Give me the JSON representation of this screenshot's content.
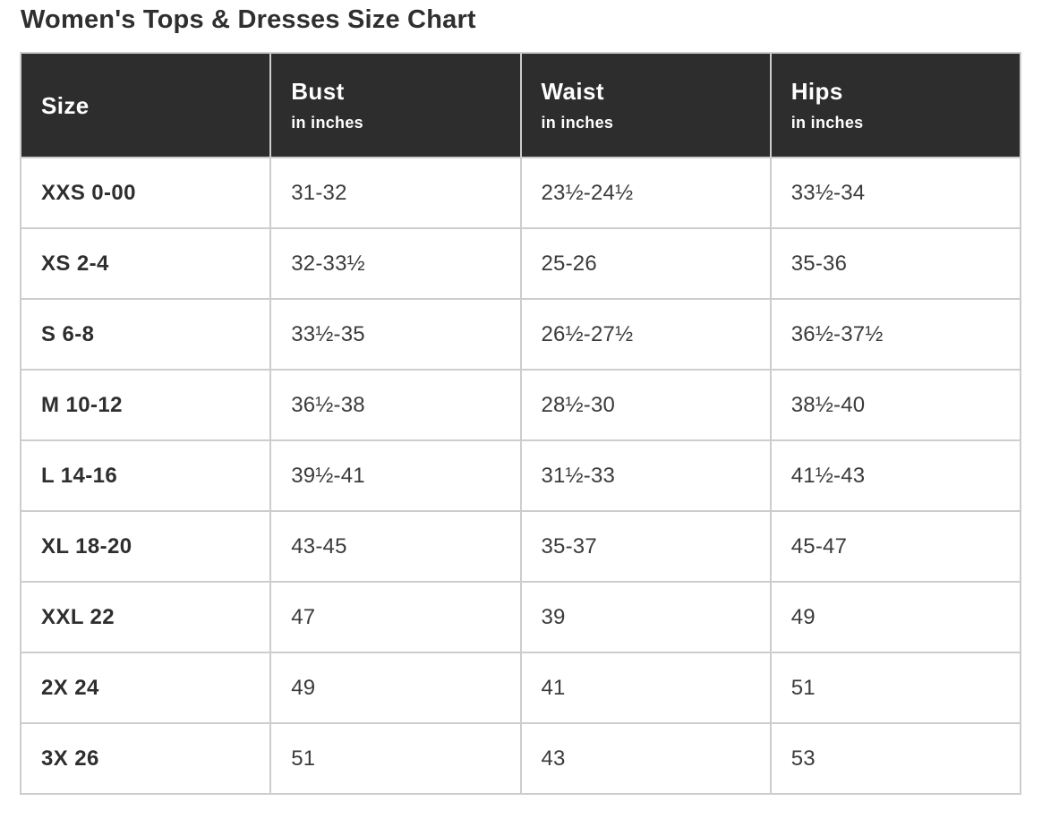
{
  "title": "Women's Tops & Dresses Size Chart",
  "colors": {
    "header_bg": "#2d2d2d",
    "header_text": "#ffffff",
    "border": "#cdcdcd",
    "body_text": "#3b3b3b",
    "title_text": "#2f2f2f"
  },
  "table": {
    "columns": [
      {
        "key": "size",
        "label": "Size",
        "sublabel": ""
      },
      {
        "key": "bust",
        "label": "Bust",
        "sublabel": "in inches"
      },
      {
        "key": "waist",
        "label": "Waist",
        "sublabel": "in inches"
      },
      {
        "key": "hips",
        "label": "Hips",
        "sublabel": "in inches"
      }
    ],
    "rows": [
      {
        "size": "XXS 0-00",
        "bust": "31-32",
        "waist": "23½-24½",
        "hips": "33½-34"
      },
      {
        "size": "XS 2-4",
        "bust": "32-33½",
        "waist": "25-26",
        "hips": "35-36"
      },
      {
        "size": "S 6-8",
        "bust": "33½-35",
        "waist": "26½-27½",
        "hips": "36½-37½"
      },
      {
        "size": "M 10-12",
        "bust": "36½-38",
        "waist": "28½-30",
        "hips": "38½-40"
      },
      {
        "size": "L 14-16",
        "bust": "39½-41",
        "waist": "31½-33",
        "hips": "41½-43"
      },
      {
        "size": "XL 18-20",
        "bust": "43-45",
        "waist": "35-37",
        "hips": "45-47"
      },
      {
        "size": "XXL 22",
        "bust": "47",
        "waist": "39",
        "hips": "49"
      },
      {
        "size": "2X 24",
        "bust": "49",
        "waist": "41",
        "hips": "51"
      },
      {
        "size": "3X 26",
        "bust": "51",
        "waist": "43",
        "hips": "53"
      }
    ]
  }
}
